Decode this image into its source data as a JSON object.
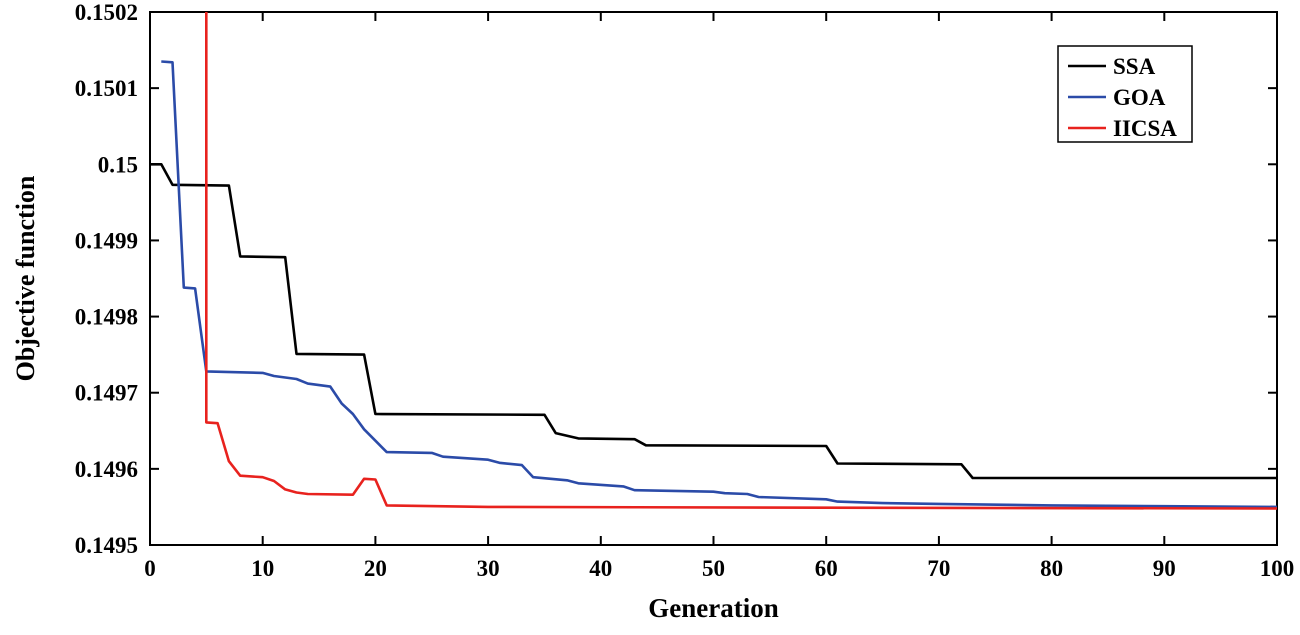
{
  "figure": {
    "background": "#ffffff",
    "axis_color": "#000000"
  },
  "chart_data": {
    "type": "line",
    "title": "",
    "xlabel": "Generation",
    "ylabel": "Objective function",
    "xlim": [
      0,
      100
    ],
    "ylim": [
      0.1495,
      0.1502
    ],
    "xticks": [
      0,
      10,
      20,
      30,
      40,
      50,
      60,
      70,
      80,
      90,
      100
    ],
    "xtick_labels": [
      "0",
      "10",
      "20",
      "30",
      "40",
      "50",
      "60",
      "70",
      "80",
      "90",
      "100"
    ],
    "yticks": [
      0.1495,
      0.1496,
      0.1497,
      0.1498,
      0.1499,
      0.15,
      0.1501,
      0.1502
    ],
    "ytick_labels": [
      "0.1495",
      "0.1496",
      "0.1497",
      "0.1498",
      "0.1499",
      "0.15",
      "0.1501",
      "0.1502"
    ],
    "grid": false,
    "legend_position": "top-right",
    "series": [
      {
        "name": "SSA",
        "color": "#000000",
        "points": [
          [
            0,
            0.15
          ],
          [
            1,
            0.15
          ],
          [
            2,
            0.149973
          ],
          [
            7,
            0.149972
          ],
          [
            8,
            0.149879
          ],
          [
            12,
            0.149878
          ],
          [
            13,
            0.149751
          ],
          [
            19,
            0.14975
          ],
          [
            20,
            0.149672
          ],
          [
            35,
            0.149671
          ],
          [
            36,
            0.149647
          ],
          [
            38,
            0.14964
          ],
          [
            43,
            0.149639
          ],
          [
            44,
            0.149631
          ],
          [
            60,
            0.14963
          ],
          [
            61,
            0.149607
          ],
          [
            72,
            0.149606
          ],
          [
            73,
            0.149588
          ],
          [
            100,
            0.149588
          ]
        ]
      },
      {
        "name": "GOA",
        "color": "#2b4ba8",
        "points": [
          [
            1,
            0.150135
          ],
          [
            2,
            0.150134
          ],
          [
            3,
            0.149838
          ],
          [
            4,
            0.149837
          ],
          [
            5,
            0.149728
          ],
          [
            10,
            0.149726
          ],
          [
            11,
            0.149722
          ],
          [
            13,
            0.149718
          ],
          [
            14,
            0.149712
          ],
          [
            16,
            0.149708
          ],
          [
            17,
            0.149686
          ],
          [
            18,
            0.149672
          ],
          [
            19,
            0.149652
          ],
          [
            20,
            0.149637
          ],
          [
            21,
            0.149622
          ],
          [
            25,
            0.149621
          ],
          [
            26,
            0.149616
          ],
          [
            30,
            0.149612
          ],
          [
            31,
            0.149608
          ],
          [
            33,
            0.149605
          ],
          [
            34,
            0.149589
          ],
          [
            37,
            0.149585
          ],
          [
            38,
            0.149581
          ],
          [
            42,
            0.149577
          ],
          [
            43,
            0.149572
          ],
          [
            50,
            0.14957
          ],
          [
            51,
            0.149568
          ],
          [
            53,
            0.149567
          ],
          [
            54,
            0.149563
          ],
          [
            60,
            0.14956
          ],
          [
            61,
            0.149557
          ],
          [
            65,
            0.149555
          ],
          [
            70,
            0.149554
          ],
          [
            80,
            0.149552
          ],
          [
            90,
            0.149551
          ],
          [
            100,
            0.14955
          ]
        ]
      },
      {
        "name": "IICSA",
        "color": "#e8221e",
        "points": [
          [
            5,
            0.1502
          ],
          [
            5,
            0.149661
          ],
          [
            6,
            0.14966
          ],
          [
            7,
            0.14961
          ],
          [
            8,
            0.149591
          ],
          [
            10,
            0.149589
          ],
          [
            11,
            0.149584
          ],
          [
            12,
            0.149573
          ],
          [
            13,
            0.149569
          ],
          [
            14,
            0.149567
          ],
          [
            18,
            0.149566
          ],
          [
            19,
            0.149587
          ],
          [
            20,
            0.149586
          ],
          [
            21,
            0.149552
          ],
          [
            30,
            0.14955
          ],
          [
            60,
            0.149549
          ],
          [
            100,
            0.149548
          ]
        ]
      }
    ]
  }
}
